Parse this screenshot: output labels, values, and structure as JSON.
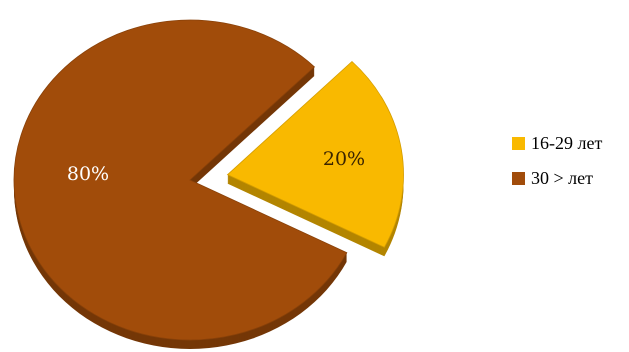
{
  "chart_data": {
    "type": "pie",
    "title": "",
    "categories": [
      "16-29 лет",
      "30 > лет"
    ],
    "values": [
      20,
      80
    ],
    "data_labels": [
      "20%",
      "80%"
    ],
    "exploded": [
      true,
      false
    ],
    "legend_position": "right",
    "colors": [
      "#F9B900",
      "#A14C0A"
    ]
  },
  "legend": {
    "items": [
      {
        "label": "16-29 лет",
        "color": "#F9B900"
      },
      {
        "label": "30 > лет",
        "color": "#A14C0A"
      }
    ]
  }
}
